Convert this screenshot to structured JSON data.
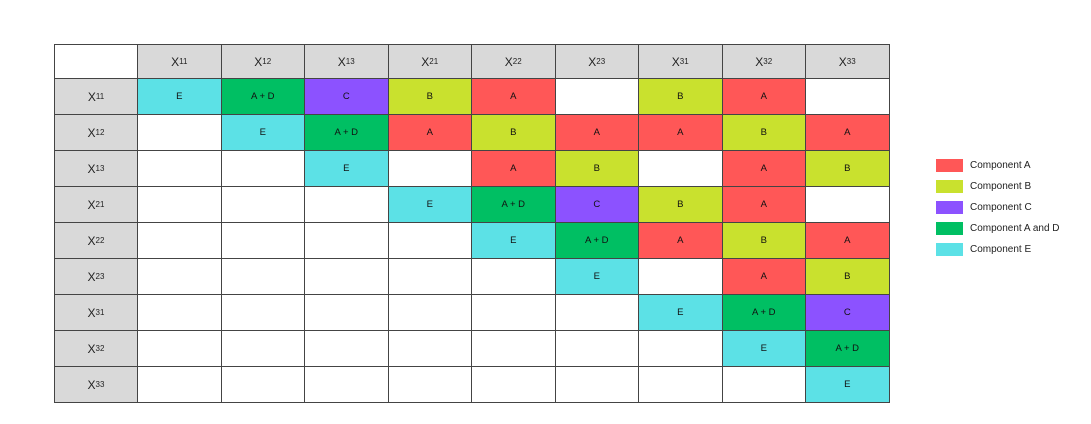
{
  "colors": {
    "A": "#ff5757",
    "B": "#c9e12e",
    "C": "#8c52ff",
    "A + D": "#00bf63",
    "E": "#5ce1e6",
    "empty": "#ffffff",
    "header": "#d9d9d9"
  },
  "headers": [
    {
      "base": "X",
      "sub": "11"
    },
    {
      "base": "X",
      "sub": "12"
    },
    {
      "base": "X",
      "sub": "13"
    },
    {
      "base": "X",
      "sub": "21"
    },
    {
      "base": "X",
      "sub": "22"
    },
    {
      "base": "X",
      "sub": "23"
    },
    {
      "base": "X",
      "sub": "31"
    },
    {
      "base": "X",
      "sub": "32"
    },
    {
      "base": "X",
      "sub": "33"
    }
  ],
  "rows": [
    [
      "E",
      "A + D",
      "C",
      "B",
      "A",
      "",
      "B",
      "A",
      ""
    ],
    [
      "",
      "E",
      "A + D",
      "A",
      "B",
      "A",
      "A",
      "B",
      "A"
    ],
    [
      "",
      "",
      "E",
      "",
      "A",
      "B",
      "",
      "A",
      "B"
    ],
    [
      "",
      "",
      "",
      "E",
      "A + D",
      "C",
      "B",
      "A",
      ""
    ],
    [
      "",
      "",
      "",
      "",
      "E",
      "A + D",
      "A",
      "B",
      "A"
    ],
    [
      "",
      "",
      "",
      "",
      "",
      "E",
      "",
      "A",
      "B"
    ],
    [
      "",
      "",
      "",
      "",
      "",
      "",
      "E",
      "A + D",
      "C"
    ],
    [
      "",
      "",
      "",
      "",
      "",
      "",
      "",
      "E",
      "A + D"
    ],
    [
      "",
      "",
      "",
      "",
      "",
      "",
      "",
      "",
      "E"
    ]
  ],
  "legend": [
    {
      "key": "A",
      "label": "Component A"
    },
    {
      "key": "B",
      "label": "Component B"
    },
    {
      "key": "C",
      "label": "Component C"
    },
    {
      "key": "A + D",
      "label": "Component A and D"
    },
    {
      "key": "E",
      "label": "Component E"
    }
  ]
}
